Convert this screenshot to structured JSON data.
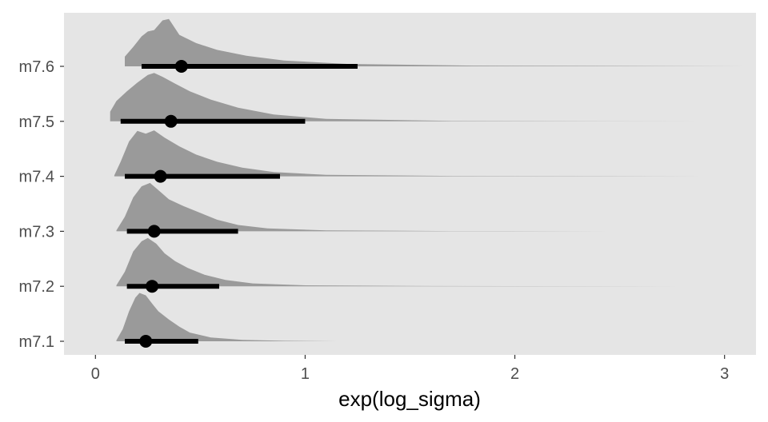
{
  "chart_data": {
    "type": "halfeye",
    "title": "",
    "xlabel": "exp(log_sigma)",
    "ylabel": "",
    "xlim": [
      -0.15,
      3.15
    ],
    "x_ticks": [
      0,
      1,
      2,
      3
    ],
    "x_tick_labels": [
      "0",
      "1",
      "2",
      "3"
    ],
    "categories": [
      "m7.1",
      "m7.2",
      "m7.3",
      "m7.4",
      "m7.5",
      "m7.6"
    ],
    "grid": false,
    "legend": "none",
    "series": [
      {
        "category": "m7.1",
        "point": 0.24,
        "interval": [
          0.14,
          0.49
        ],
        "range": [
          0.1,
          1.15
        ],
        "density_x": [
          0.1,
          0.13,
          0.16,
          0.19,
          0.21,
          0.24,
          0.27,
          0.3,
          0.35,
          0.4,
          0.45,
          0.55,
          0.7,
          0.9,
          1.15
        ],
        "density_y": [
          0.02,
          0.25,
          0.62,
          0.9,
          1.0,
          0.95,
          0.78,
          0.62,
          0.45,
          0.3,
          0.18,
          0.08,
          0.03,
          0.01,
          0.0
        ]
      },
      {
        "category": "m7.2",
        "point": 0.27,
        "interval": [
          0.15,
          0.59
        ],
        "range": [
          0.1,
          2.8
        ],
        "density_x": [
          0.1,
          0.14,
          0.18,
          0.22,
          0.25,
          0.29,
          0.33,
          0.38,
          0.44,
          0.52,
          0.62,
          0.75,
          1.0,
          1.6,
          2.8
        ],
        "density_y": [
          0.02,
          0.3,
          0.72,
          0.93,
          1.0,
          0.88,
          0.68,
          0.52,
          0.38,
          0.24,
          0.13,
          0.06,
          0.02,
          0.005,
          0.0
        ]
      },
      {
        "category": "m7.3",
        "point": 0.28,
        "interval": [
          0.15,
          0.68
        ],
        "range": [
          0.1,
          2.7
        ],
        "density_x": [
          0.1,
          0.14,
          0.18,
          0.22,
          0.26,
          0.3,
          0.35,
          0.42,
          0.5,
          0.58,
          0.68,
          0.82,
          1.1,
          1.7,
          2.7
        ],
        "density_y": [
          0.02,
          0.3,
          0.7,
          0.93,
          1.0,
          0.85,
          0.66,
          0.52,
          0.38,
          0.24,
          0.13,
          0.06,
          0.02,
          0.005,
          0.0
        ]
      },
      {
        "category": "m7.4",
        "point": 0.31,
        "interval": [
          0.14,
          0.88
        ],
        "range": [
          0.09,
          2.9
        ],
        "density_x": [
          0.09,
          0.12,
          0.16,
          0.2,
          0.24,
          0.28,
          0.33,
          0.4,
          0.48,
          0.58,
          0.7,
          0.85,
          1.1,
          1.7,
          2.9
        ],
        "density_y": [
          0.02,
          0.3,
          0.72,
          0.94,
          0.88,
          0.95,
          0.8,
          0.62,
          0.45,
          0.3,
          0.18,
          0.09,
          0.03,
          0.008,
          0.0
        ]
      },
      {
        "category": "m7.5",
        "point": 0.36,
        "interval": [
          0.12,
          1.0
        ],
        "range": [
          0.07,
          2.9
        ],
        "density_x": [
          0.07,
          0.1,
          0.15,
          0.2,
          0.25,
          0.28,
          0.32,
          0.38,
          0.45,
          0.55,
          0.68,
          0.85,
          1.1,
          1.7,
          2.9
        ],
        "density_y": [
          0.2,
          0.42,
          0.62,
          0.8,
          0.96,
          1.0,
          0.92,
          0.78,
          0.62,
          0.45,
          0.28,
          0.14,
          0.05,
          0.01,
          0.0
        ]
      },
      {
        "category": "m7.6",
        "point": 0.41,
        "interval": [
          0.22,
          1.25
        ],
        "range": [
          0.14,
          3.1
        ],
        "density_x": [
          0.14,
          0.18,
          0.22,
          0.25,
          0.28,
          0.32,
          0.35,
          0.4,
          0.48,
          0.58,
          0.72,
          0.9,
          1.2,
          1.8,
          3.1
        ],
        "density_y": [
          0.2,
          0.4,
          0.62,
          0.72,
          0.75,
          0.95,
          0.98,
          0.65,
          0.48,
          0.34,
          0.22,
          0.12,
          0.05,
          0.015,
          0.0
        ]
      }
    ],
    "colors": {
      "panel_background": "#e5e5e5",
      "density_fill": "#9a9a9a",
      "interval": "#000000",
      "tick_text": "#4d4d4d",
      "axis_title": "#000000"
    }
  }
}
